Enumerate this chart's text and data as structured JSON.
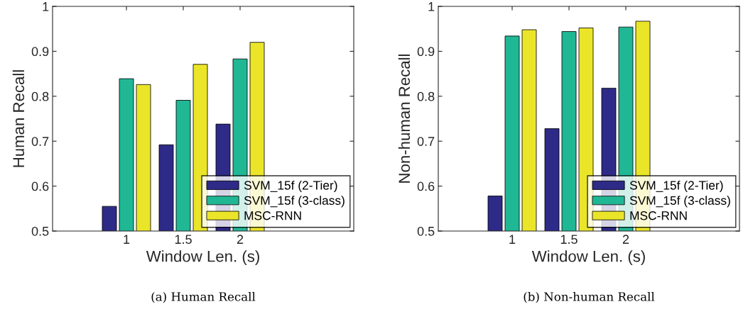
{
  "chart_data": [
    {
      "type": "bar",
      "xlabel": "Window Len. (s)",
      "ylabel": "Human Recall",
      "categories": [
        "1",
        "1.5",
        "2"
      ],
      "series": [
        {
          "name": "SVM_15f (2-Tier)",
          "color": "#2e2a87",
          "values": [
            0.555,
            0.692,
            0.738
          ]
        },
        {
          "name": "SVM_15f (3-class)",
          "color": "#20b795",
          "values": [
            0.839,
            0.791,
            0.883
          ]
        },
        {
          "name": "MSC-RNN",
          "color": "#ebe52a",
          "values": [
            0.826,
            0.871,
            0.92
          ]
        }
      ],
      "ylim": [
        0.5,
        1
      ],
      "yticks": [
        0.5,
        0.6,
        0.7,
        0.8,
        0.9,
        1
      ],
      "grid": false,
      "legend": "bottom right",
      "annotations": [
        "(a) Human Recall"
      ]
    },
    {
      "type": "bar",
      "xlabel": "Window Len. (s)",
      "ylabel": "Non-human Recall",
      "categories": [
        "1",
        "1.5",
        "2"
      ],
      "series": [
        {
          "name": "SVM_15f (2-Tier)",
          "color": "#2e2a87",
          "values": [
            0.578,
            0.728,
            0.818
          ]
        },
        {
          "name": "SVM_15f (3-class)",
          "color": "#20b795",
          "values": [
            0.934,
            0.944,
            0.954
          ]
        },
        {
          "name": "MSC-RNN",
          "color": "#ebe52a",
          "values": [
            0.948,
            0.952,
            0.967
          ]
        }
      ],
      "ylim": [
        0.5,
        1
      ],
      "yticks": [
        0.5,
        0.6,
        0.7,
        0.8,
        0.9,
        1
      ],
      "grid": false,
      "legend": "bottom right",
      "annotations": [
        "(b) Non-human Recall"
      ]
    }
  ]
}
